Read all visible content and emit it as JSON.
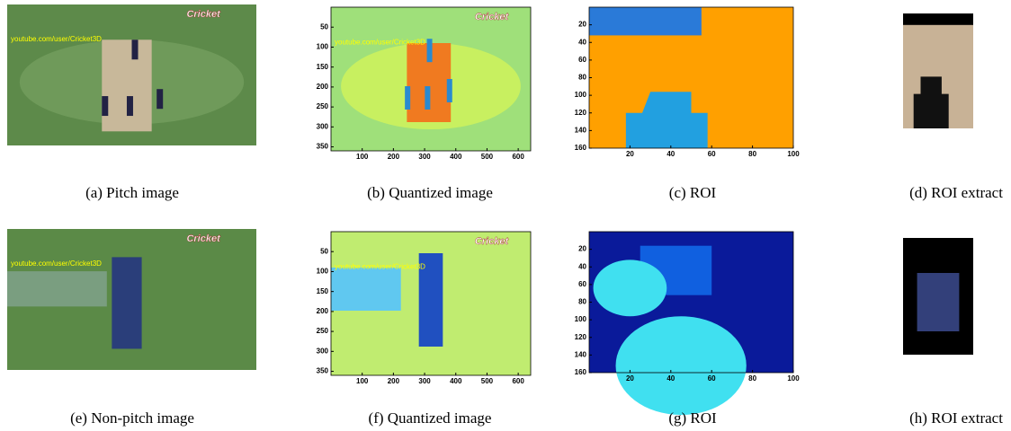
{
  "figure": {
    "panels": [
      {
        "caption": "(a)  Pitch image",
        "overlay": "youtube.com/user/Cricket3D",
        "logo": "Cricket"
      },
      {
        "caption": "(b)  Quantized image",
        "overlay": "youtube.com/user/Cricket3D",
        "logo": "Cricket",
        "xlim": [
          0,
          640
        ],
        "ylim": [
          0,
          360
        ],
        "xticks": [
          100,
          200,
          300,
          400,
          500,
          600
        ],
        "yticks": [
          50,
          100,
          150,
          200,
          250,
          300,
          350
        ]
      },
      {
        "caption": "(c)  ROI",
        "xlim": [
          0,
          100
        ],
        "ylim": [
          0,
          160
        ],
        "xticks": [
          20,
          40,
          60,
          80,
          100
        ],
        "yticks": [
          20,
          40,
          60,
          80,
          100,
          120,
          140,
          160
        ]
      },
      {
        "caption": "(d)  ROI extract"
      },
      {
        "caption": "(e)  Non-pitch image",
        "overlay": "youtube.com/user/Cricket3D",
        "logo": "Cricket"
      },
      {
        "caption": "(f)  Quantized image",
        "overlay": "youtube.com/user/Cricket3D",
        "logo": "Cricket",
        "xlim": [
          0,
          640
        ],
        "ylim": [
          0,
          360
        ],
        "xticks": [
          100,
          200,
          300,
          400,
          500,
          600
        ],
        "yticks": [
          50,
          100,
          150,
          200,
          250,
          300,
          350
        ]
      },
      {
        "caption": "(g)  ROI",
        "xlim": [
          0,
          100
        ],
        "ylim": [
          0,
          160
        ],
        "xticks": [
          20,
          40,
          60,
          80,
          100
        ],
        "yticks": [
          20,
          40,
          60,
          80,
          100,
          120,
          140,
          160
        ]
      },
      {
        "caption": "(h)  ROI extract"
      }
    ]
  }
}
